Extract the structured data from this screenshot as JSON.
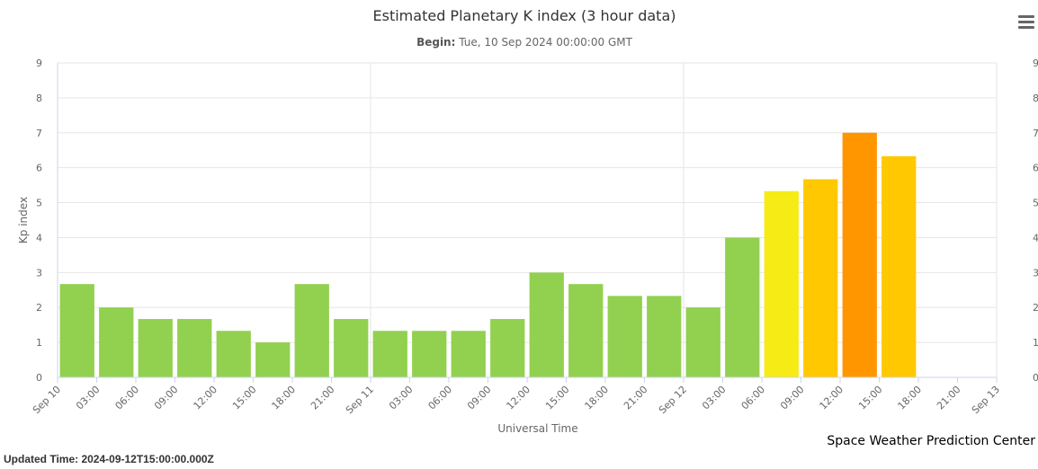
{
  "chart_data": {
    "type": "bar",
    "title": "Estimated Planetary K index (3 hour data)",
    "subtitle_label": "Begin:",
    "subtitle_value": "Tue, 10 Sep 2024 00:00:00 GMT",
    "xlabel": "Universal Time",
    "ylabel": "Kp index",
    "ylim": [
      0,
      9
    ],
    "yticks": [
      "0",
      "1",
      "2",
      "3",
      "4",
      "5",
      "6",
      "7",
      "8",
      "9"
    ],
    "x_tick_labels": [
      "Sep 10",
      "03:00",
      "06:00",
      "09:00",
      "12:00",
      "15:00",
      "18:00",
      "21:00",
      "Sep 11",
      "03:00",
      "06:00",
      "09:00",
      "12:00",
      "15:00",
      "18:00",
      "21:00",
      "Sep 12",
      "03:00",
      "06:00",
      "09:00",
      "12:00",
      "15:00",
      "18:00",
      "21:00",
      "Sep 13"
    ],
    "categories": [
      "Sep 10 00:00",
      "03:00",
      "06:00",
      "09:00",
      "12:00",
      "15:00",
      "18:00",
      "21:00",
      "Sep 11 00:00",
      "03:00",
      "06:00",
      "09:00",
      "12:00",
      "15:00",
      "18:00",
      "21:00",
      "Sep 12 00:00",
      "03:00",
      "06:00",
      "09:00",
      "12:00",
      "15:00"
    ],
    "values": [
      2.67,
      2.0,
      1.67,
      1.67,
      1.33,
      1.0,
      2.67,
      1.67,
      1.33,
      1.33,
      1.33,
      1.67,
      3.0,
      2.67,
      2.33,
      2.33,
      2.0,
      4.0,
      5.33,
      5.67,
      7.0,
      6.33
    ],
    "bar_colors": [
      "#92d050",
      "#92d050",
      "#92d050",
      "#92d050",
      "#92d050",
      "#92d050",
      "#92d050",
      "#92d050",
      "#92d050",
      "#92d050",
      "#92d050",
      "#92d050",
      "#92d050",
      "#92d050",
      "#92d050",
      "#92d050",
      "#92d050",
      "#92d050",
      "#f6eb14",
      "#ffc800",
      "#ff9600",
      "#ffc800"
    ],
    "grid": true,
    "legend": "none"
  },
  "footer": {
    "credit": "Space Weather Prediction Center",
    "updated": "Updated Time: 2024-09-12T15:00:00.000Z"
  },
  "menu": {
    "icon": "hamburger-menu-icon"
  }
}
